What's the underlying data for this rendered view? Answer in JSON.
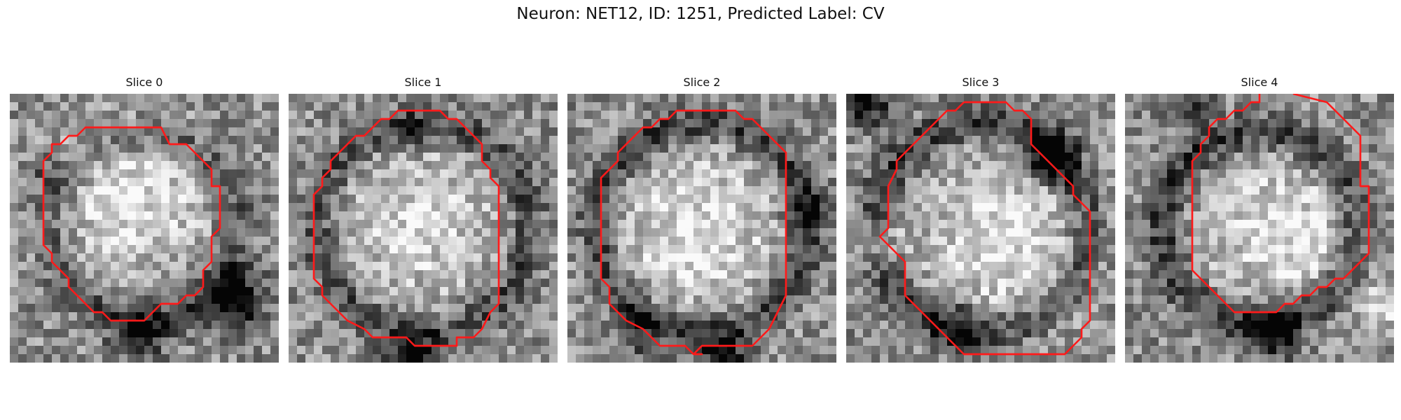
{
  "suptitle": "Neuron: NET12, ID: 1251, Predicted Label: CV",
  "colors": {
    "contour": "#ff1a1a",
    "background": "#ffffff"
  },
  "colormap": "gray",
  "grid": 32,
  "panels": [
    {
      "title": "Slice 0",
      "contour": [
        [
          9,
          4
        ],
        [
          18,
          4
        ],
        [
          19,
          6
        ],
        [
          21,
          6
        ],
        [
          24,
          9
        ],
        [
          24,
          11
        ],
        [
          25,
          11
        ],
        [
          25,
          16
        ],
        [
          24,
          17
        ],
        [
          24,
          20
        ],
        [
          23,
          21
        ],
        [
          23,
          23
        ],
        [
          22,
          24
        ],
        [
          21,
          24
        ],
        [
          20,
          25
        ],
        [
          18,
          25
        ],
        [
          16,
          27
        ],
        [
          12,
          27
        ],
        [
          11,
          26
        ],
        [
          10,
          26
        ],
        [
          9,
          25
        ],
        [
          8,
          24
        ],
        [
          7,
          23
        ],
        [
          7,
          22
        ],
        [
          6,
          21
        ],
        [
          5,
          20
        ],
        [
          5,
          19
        ],
        [
          4,
          18
        ],
        [
          4,
          12
        ],
        [
          4,
          9
        ],
        [
          4,
          8
        ],
        [
          5,
          7
        ],
        [
          5,
          6
        ],
        [
          6,
          6
        ],
        [
          7,
          5
        ],
        [
          7,
          5
        ],
        [
          8,
          5
        ],
        [
          9,
          4
        ]
      ],
      "blobs": [
        {
          "c": [
            14,
            12
          ],
          "r": 9,
          "v": 0.35
        },
        {
          "c": [
            4,
            9
          ],
          "r": 2,
          "v": -0.25
        },
        {
          "c": [
            26,
            24
          ],
          "r": 3.5,
          "v": -0.6
        },
        {
          "c": [
            15,
            28
          ],
          "r": 3,
          "v": -0.5
        }
      ],
      "ring": 0.25,
      "ringR": 11,
      "seed": 11
    },
    {
      "title": "Slice 1",
      "contour": [
        [
          14,
          2
        ],
        [
          18,
          2
        ],
        [
          19,
          3
        ],
        [
          20,
          3
        ],
        [
          23,
          6
        ],
        [
          23,
          8
        ],
        [
          24,
          9
        ],
        [
          24,
          10
        ],
        [
          25,
          11
        ],
        [
          25,
          25
        ],
        [
          24,
          26
        ],
        [
          23,
          28
        ],
        [
          22,
          29
        ],
        [
          20,
          29
        ],
        [
          20,
          30
        ],
        [
          15,
          30
        ],
        [
          14,
          29
        ],
        [
          10,
          29
        ],
        [
          9,
          28
        ],
        [
          7,
          27
        ],
        [
          6,
          26
        ],
        [
          5,
          25
        ],
        [
          4,
          24
        ],
        [
          4,
          23
        ],
        [
          3,
          22
        ],
        [
          3,
          18
        ],
        [
          3,
          14
        ],
        [
          3,
          12
        ],
        [
          4,
          11
        ],
        [
          4,
          10
        ],
        [
          5,
          9
        ],
        [
          5,
          8
        ],
        [
          6,
          7
        ],
        [
          7,
          6
        ],
        [
          8,
          5
        ],
        [
          9,
          5
        ],
        [
          10,
          4
        ],
        [
          11,
          3
        ],
        [
          12,
          3
        ],
        [
          13,
          2
        ],
        [
          14,
          2
        ]
      ],
      "blobs": [
        {
          "c": [
            15,
            15
          ],
          "r": 10,
          "v": 0.3
        },
        {
          "c": [
            14,
            31
          ],
          "r": 3,
          "v": -0.5
        },
        {
          "c": [
            14,
            4
          ],
          "r": 2.5,
          "v": -0.2
        }
      ],
      "ring": 0.3,
      "ringR": 12.5,
      "seed": 23
    },
    {
      "title": "Slice 2",
      "contour": [
        [
          14,
          2
        ],
        [
          20,
          2
        ],
        [
          21,
          3
        ],
        [
          22,
          3
        ],
        [
          23,
          4
        ],
        [
          24,
          5
        ],
        [
          26,
          7
        ],
        [
          26,
          21
        ],
        [
          26,
          24
        ],
        [
          25,
          26
        ],
        [
          24,
          28
        ],
        [
          23,
          29
        ],
        [
          22,
          30
        ],
        [
          16,
          30
        ],
        [
          15,
          31
        ],
        [
          16,
          31
        ],
        [
          15,
          31
        ],
        [
          14,
          30
        ],
        [
          11,
          30
        ],
        [
          10,
          29
        ],
        [
          9,
          28
        ],
        [
          7,
          27
        ],
        [
          6,
          26
        ],
        [
          5,
          25
        ],
        [
          5,
          23
        ],
        [
          4,
          22
        ],
        [
          4,
          19
        ],
        [
          4,
          12
        ],
        [
          4,
          10
        ],
        [
          5,
          9
        ],
        [
          6,
          8
        ],
        [
          6,
          7
        ],
        [
          7,
          6
        ],
        [
          8,
          5
        ],
        [
          9,
          4
        ],
        [
          10,
          4
        ],
        [
          11,
          3
        ],
        [
          12,
          3
        ],
        [
          13,
          2
        ],
        [
          14,
          2
        ]
      ],
      "blobs": [
        {
          "c": [
            15,
            16
          ],
          "r": 10,
          "v": 0.35
        },
        {
          "c": [
            18,
            31
          ],
          "r": 3,
          "v": -0.5
        },
        {
          "c": [
            8,
            28
          ],
          "r": 3,
          "v": -0.3
        },
        {
          "c": [
            28,
            13
          ],
          "r": 2.5,
          "v": -0.3
        }
      ],
      "ring": 0.35,
      "ringR": 12.5,
      "seed": 37
    },
    {
      "title": "Slice 3",
      "contour": [
        [
          14,
          1
        ],
        [
          19,
          1
        ],
        [
          20,
          2
        ],
        [
          21,
          2
        ],
        [
          22,
          3
        ],
        [
          22,
          6
        ],
        [
          23,
          7
        ],
        [
          24,
          8
        ],
        [
          25,
          9
        ],
        [
          26,
          10
        ],
        [
          27,
          11
        ],
        [
          27,
          12
        ],
        [
          28,
          13
        ],
        [
          29,
          14
        ],
        [
          29,
          27
        ],
        [
          28,
          28
        ],
        [
          28,
          29
        ],
        [
          27,
          30
        ],
        [
          26,
          31
        ],
        [
          14,
          31
        ],
        [
          13,
          30
        ],
        [
          12,
          29
        ],
        [
          11,
          28
        ],
        [
          10,
          27
        ],
        [
          9,
          26
        ],
        [
          8,
          25
        ],
        [
          7,
          24
        ],
        [
          7,
          20
        ],
        [
          6,
          19
        ],
        [
          5,
          18
        ],
        [
          4,
          17
        ],
        [
          5,
          16
        ],
        [
          5,
          15
        ],
        [
          5,
          13
        ],
        [
          5,
          11
        ],
        [
          6,
          9
        ],
        [
          6,
          8
        ],
        [
          7,
          7
        ],
        [
          8,
          6
        ],
        [
          9,
          5
        ],
        [
          10,
          4
        ],
        [
          11,
          3
        ],
        [
          12,
          2
        ],
        [
          13,
          2
        ],
        [
          14,
          1
        ]
      ],
      "open": [
        11,
        28
      ],
      "blobs": [
        {
          "c": [
            18,
            17
          ],
          "r": 10,
          "v": 0.35
        },
        {
          "c": [
            24,
            7
          ],
          "r": 3,
          "v": -0.6
        },
        {
          "c": [
            2,
            1
          ],
          "r": 2.5,
          "v": -0.5
        },
        {
          "c": [
            13,
            27
          ],
          "r": 3,
          "v": -0.35
        },
        {
          "c": [
            3,
            17
          ],
          "r": 3,
          "v": 0.3
        }
      ],
      "ring": 0.35,
      "ringR": 12.5,
      "seed": 53
    },
    {
      "title": "Slice 4",
      "contour": [
        [
          20,
          0
        ],
        [
          24,
          1
        ],
        [
          25,
          2
        ],
        [
          26,
          3
        ],
        [
          27,
          4
        ],
        [
          28,
          5
        ],
        [
          28,
          11
        ],
        [
          29,
          11
        ],
        [
          29,
          19
        ],
        [
          28,
          20
        ],
        [
          27,
          21
        ],
        [
          26,
          22
        ],
        [
          25,
          22
        ],
        [
          24,
          23
        ],
        [
          23,
          23
        ],
        [
          22,
          24
        ],
        [
          21,
          24
        ],
        [
          20,
          25
        ],
        [
          19,
          25
        ],
        [
          18,
          26
        ],
        [
          13,
          26
        ],
        [
          12,
          25
        ],
        [
          11,
          24
        ],
        [
          10,
          23
        ],
        [
          9,
          22
        ],
        [
          8,
          21
        ],
        [
          8,
          19
        ],
        [
          8,
          15
        ],
        [
          8,
          9
        ],
        [
          8,
          8
        ],
        [
          9,
          7
        ],
        [
          9,
          6
        ],
        [
          10,
          5
        ],
        [
          10,
          4
        ],
        [
          11,
          3
        ],
        [
          12,
          3
        ],
        [
          13,
          2
        ],
        [
          14,
          2
        ],
        [
          15,
          1
        ],
        [
          16,
          1
        ],
        [
          16,
          0
        ]
      ],
      "open": [
        16,
        0
      ],
      "blobs": [
        {
          "c": [
            18,
            16
          ],
          "r": 9,
          "v": 0.35
        },
        {
          "c": [
            17,
            28
          ],
          "r": 3,
          "v": -0.6
        },
        {
          "c": [
            7,
            1
          ],
          "r": 2.5,
          "v": -0.4
        },
        {
          "c": [
            30,
            25
          ],
          "r": 2.5,
          "v": 0.3
        }
      ],
      "ring": 0.35,
      "ringR": 11.5,
      "seed": 71
    }
  ]
}
